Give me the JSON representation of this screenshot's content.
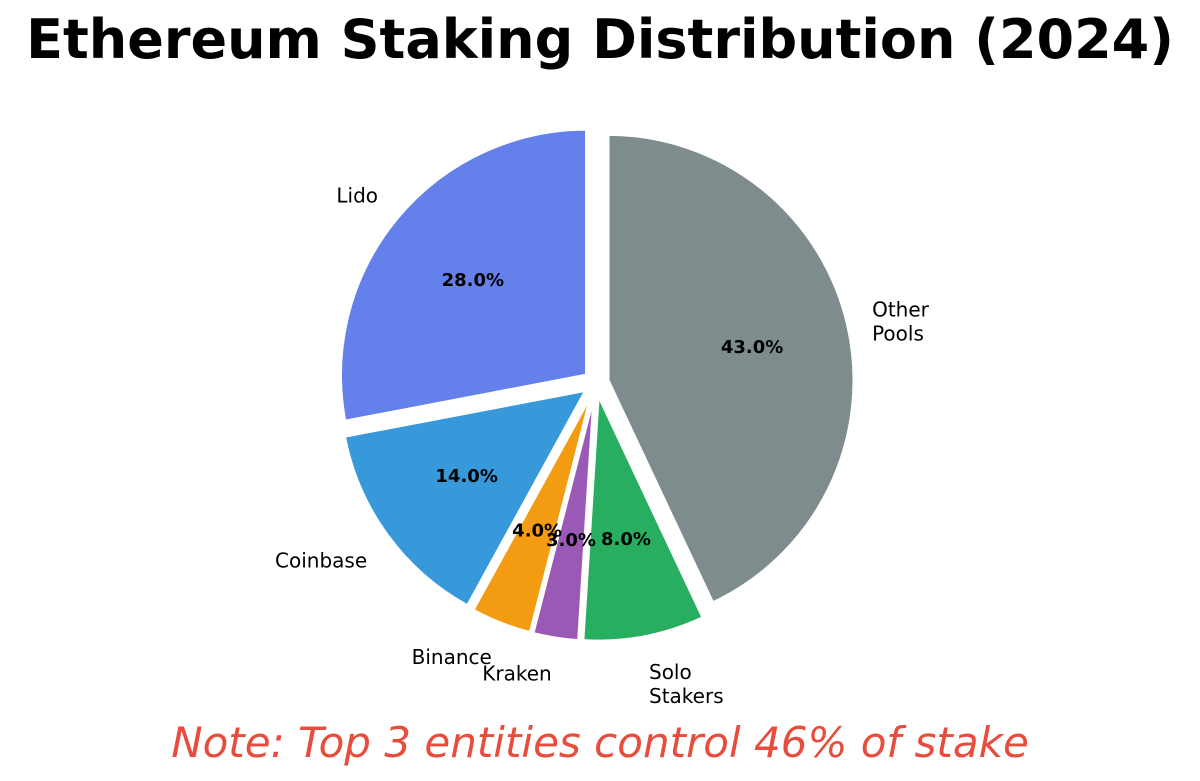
{
  "chart_data": {
    "type": "pie",
    "title": "Ethereum Staking Distribution (2024)",
    "categories": [
      "Lido",
      "Coinbase",
      "Binance",
      "Kraken",
      "Solo Stakers",
      "Other Pools"
    ],
    "values": [
      28.0,
      14.0,
      4.0,
      3.0,
      8.0,
      43.0
    ],
    "value_labels": [
      "28.0%",
      "14.0%",
      "4.0%",
      "3.0%",
      "8.0%",
      "43.0%"
    ],
    "label_lines": [
      [
        "Lido"
      ],
      [
        "Coinbase"
      ],
      [
        "Binance"
      ],
      [
        "Kraken"
      ],
      [
        "Solo",
        "Stakers"
      ],
      [
        "Other",
        "Pools"
      ]
    ],
    "colors": [
      "#6480EA",
      "#3799DA",
      "#F39C12",
      "#9B59B6",
      "#27AE60",
      "#7F8C8D"
    ],
    "explode": [
      0.05,
      0.05,
      0.05,
      0.05,
      0.05,
      0.05
    ],
    "start_angle_deg": 90,
    "direction": "counterclockwise",
    "edge_color": "#ffffff",
    "legend": "none",
    "note": "Note: Top 3 entities control 46% of stake",
    "note_color": "#E74C3C"
  }
}
